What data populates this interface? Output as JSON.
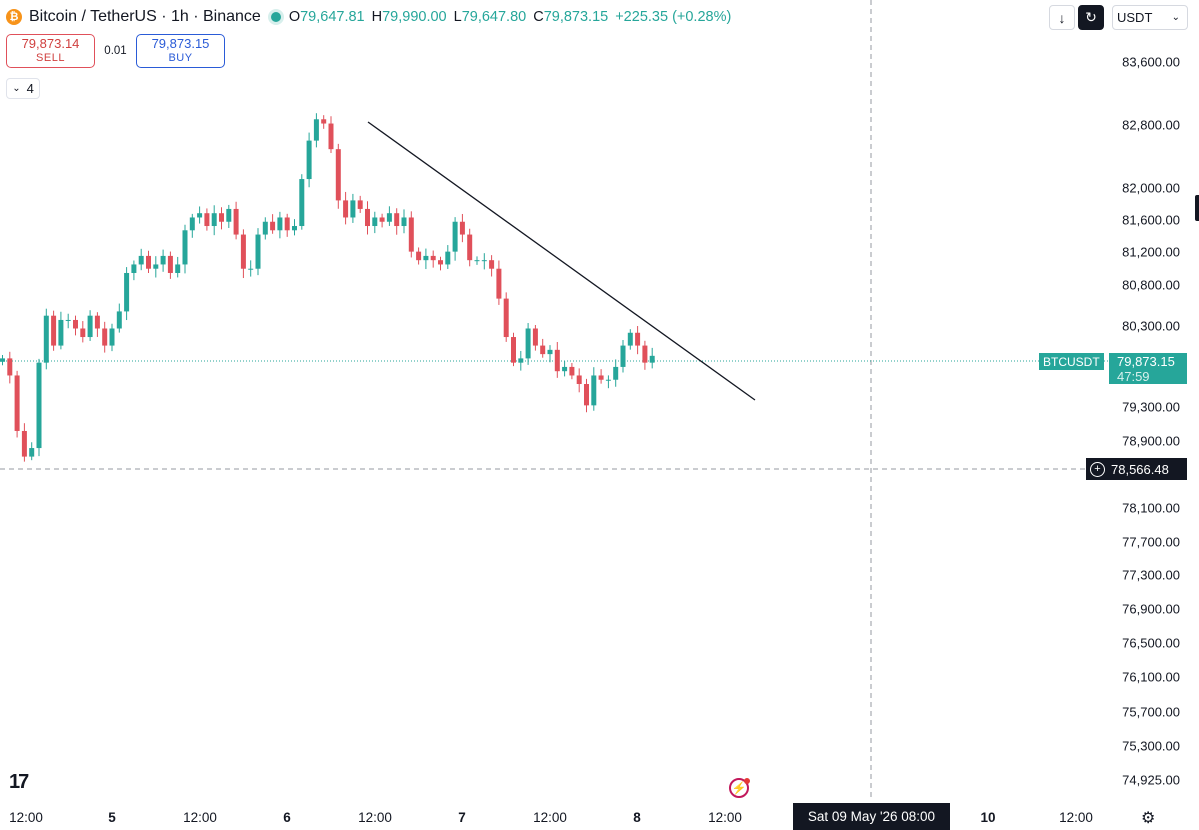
{
  "header": {
    "coin_icon": "bitcoin-icon",
    "symbol_title": "Bitcoin / TetherUS · 1h · Binance",
    "ohlc": {
      "o_key": "O",
      "o": "79,647.81",
      "h_key": "H",
      "h": "79,990.00",
      "l_key": "L",
      "l": "79,647.80",
      "c_key": "C",
      "c": "79,873.15",
      "change": "+225.35 (+0.28%)"
    }
  },
  "trade": {
    "sell_price": "79,873.14",
    "sell_label": "SELL",
    "quantity": "0.01",
    "buy_price": "79,873.15",
    "buy_label": "BUY"
  },
  "indicators": {
    "count": "4"
  },
  "toolbar": {
    "download_icon": "arrow-down-icon",
    "refresh_icon": "reload-icon",
    "currency": "USDT"
  },
  "price_axis": {
    "labels": [
      "83,600.00",
      "82,800.00",
      "82,000.00",
      "81,600.00",
      "81,200.00",
      "80,800.00",
      "80,300.00",
      "79,300.00",
      "78,900.00",
      "78,100.00",
      "77,700.00",
      "77,300.00",
      "76,900.00",
      "76,500.00",
      "76,100.00",
      "75,700.00",
      "75,300.00",
      "74,925.00"
    ],
    "symbol_tag": "BTCUSDT",
    "last_price": "79,873.15",
    "countdown": "47:59",
    "crosshair_price": "78,566.48"
  },
  "time_axis": {
    "labels": [
      "12:00",
      "5",
      "12:00",
      "6",
      "12:00",
      "7",
      "12:00",
      "8",
      "12:00",
      "10",
      "12:00"
    ],
    "crosshair_time": "Sat 09 May '26   08:00"
  },
  "colors": {
    "up": "#26a69a",
    "down": "#e0505a"
  },
  "chart_data": {
    "type": "candlestick",
    "interval": "1h",
    "up_color": "#26a69a",
    "down_color": "#e0505a",
    "last_price": 79873.15,
    "crosshair_price": 78566.48,
    "trendline": [
      [
        82850,
        0
      ],
      [
        79330,
        1
      ]
    ],
    "closes": [
      79850,
      79650,
      79000,
      78700,
      78800,
      79800,
      80350,
      80000,
      80300,
      80300,
      80200,
      80100,
      80350,
      80200,
      80000,
      80200,
      80400,
      80850,
      80950,
      81050,
      80900,
      80950,
      81050,
      80850,
      80950,
      81350,
      81500,
      81550,
      81400,
      81550,
      81450,
      81600,
      81300,
      80900,
      80900,
      81300,
      81450,
      81350,
      81500,
      81350,
      81400,
      81950,
      82400,
      82650,
      82600,
      82300,
      81700,
      81500,
      81700,
      81600,
      81400,
      81500,
      81450,
      81550,
      81400,
      81500,
      81100,
      81000,
      81050,
      81000,
      80950,
      81100,
      81450,
      81300,
      81000,
      81000,
      81000,
      80900,
      80550,
      80100,
      79800,
      79850,
      80200,
      80000,
      79900,
      79950,
      79700,
      79750,
      79650,
      79550,
      79300,
      79650,
      79600,
      79600,
      79750,
      80000,
      80150,
      80000,
      79800,
      79880
    ]
  }
}
